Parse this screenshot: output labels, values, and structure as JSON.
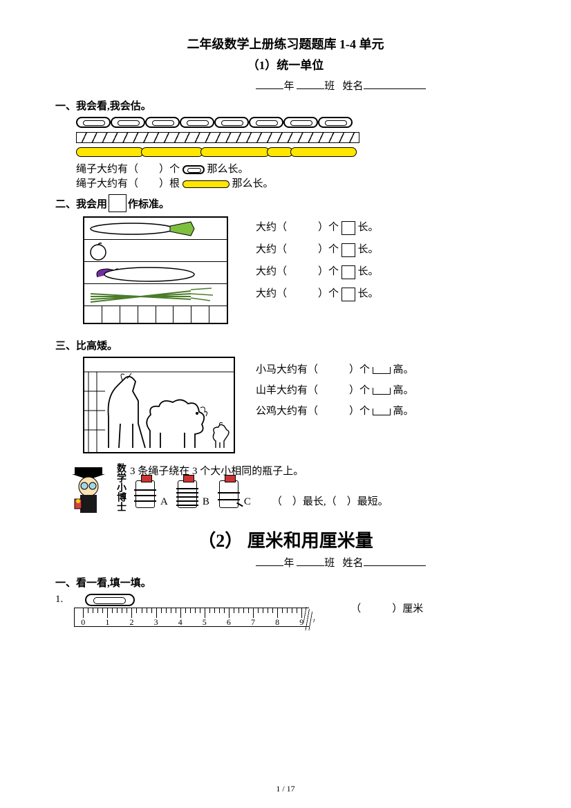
{
  "title": "二年级数学上册练习题题库 1-4 单元",
  "subtitle": "（1）统一单位",
  "header": {
    "year_label": "年",
    "class_label": "班",
    "name_label": "姓名"
  },
  "s1": {
    "head": "一、我会看,我会估。",
    "line1_a": "绳子大约有（",
    "line1_b": "）个",
    "line1_c": "那么长。",
    "line2_a": "绳子大约有（",
    "line2_b": "）根",
    "line2_c": "那么长。"
  },
  "s2": {
    "head_a": "二、我会用",
    "head_b": "作标准。",
    "item_a": "大约（",
    "item_b": "）个",
    "item_c": "长。"
  },
  "s3": {
    "head": "三、比高矮。",
    "horse_a": "小马大约有（",
    "goat_a": "山羊大约有（",
    "rooster_a": "公鸡大约有（",
    "tail_b": "）个",
    "tail_c": "高。"
  },
  "doctor": {
    "label": "数学小博士",
    "intro": "3 条绳子绕在 3 个大小相同的瓶子上。",
    "a": "A",
    "b": "B",
    "c": "C",
    "q": "（　）最长,（　）最短。"
  },
  "part2": {
    "title": "（2） 厘米和用厘米量",
    "s1_head": "一、看一看,填一填。",
    "q1_num": "1.",
    "q1_ans": "（　　　）厘米",
    "ruler_labels": [
      "0",
      "1",
      "2",
      "3",
      "4",
      "5",
      "6",
      "7",
      "8",
      "9"
    ]
  },
  "page": "1 / 17"
}
